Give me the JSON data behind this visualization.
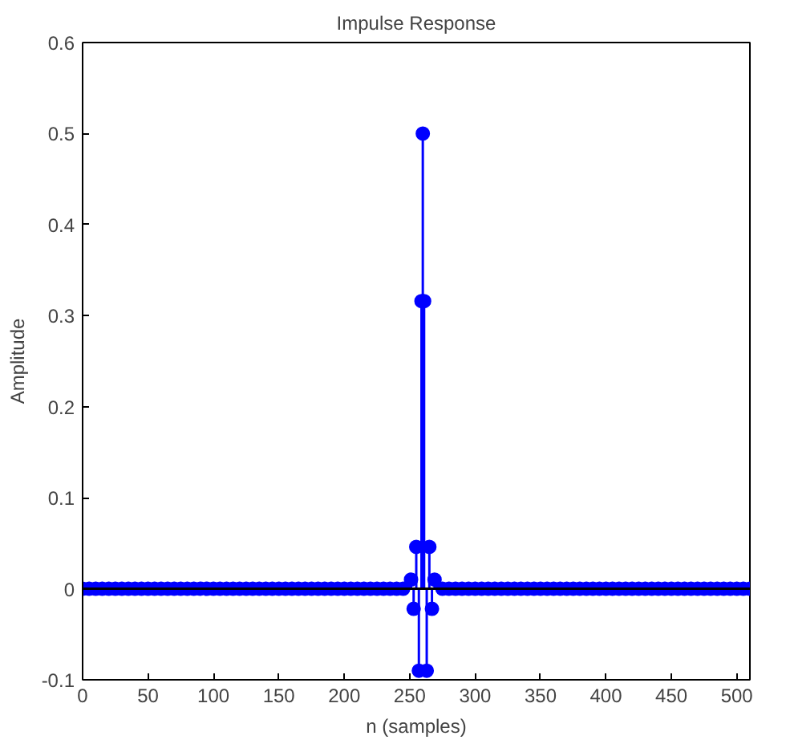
{
  "chart_data": {
    "type": "lollipop",
    "title": "Impulse Response",
    "xlabel": "n (samples)",
    "ylabel": "Amplitude",
    "xlim": [
      0,
      510
    ],
    "ylim": [
      -0.1,
      0.6
    ],
    "xticks": [
      0,
      50,
      100,
      150,
      200,
      250,
      300,
      350,
      400,
      450,
      500
    ],
    "yticks": [
      -0.1,
      0,
      0.1,
      0.2,
      0.3,
      0.4,
      0.5,
      0.6
    ],
    "grid": false,
    "marker": "circle",
    "ref_lines": [
      {
        "axis": "y",
        "value": 0,
        "color": "#000000"
      }
    ],
    "series": [
      {
        "color": "#0000ff",
        "x": [
          0,
          5,
          10,
          15,
          20,
          25,
          30,
          35,
          40,
          45,
          50,
          55,
          60,
          65,
          70,
          75,
          80,
          85,
          90,
          95,
          100,
          105,
          110,
          115,
          120,
          125,
          130,
          135,
          140,
          145,
          150,
          155,
          160,
          165,
          170,
          175,
          180,
          185,
          190,
          195,
          200,
          205,
          210,
          215,
          220,
          225,
          230,
          235,
          240,
          245,
          251,
          253,
          255,
          257,
          259,
          260,
          261,
          263,
          265,
          267,
          269,
          275,
          280,
          285,
          290,
          295,
          300,
          305,
          310,
          315,
          320,
          325,
          330,
          335,
          340,
          345,
          350,
          355,
          360,
          365,
          370,
          375,
          380,
          385,
          390,
          395,
          400,
          405,
          410,
          415,
          420,
          425,
          430,
          435,
          440,
          445,
          450,
          455,
          460,
          465,
          470,
          475,
          480,
          485,
          490,
          495,
          500,
          505,
          510
        ],
        "values": [
          0,
          0,
          0,
          0,
          0,
          0,
          0,
          0,
          0,
          0,
          0,
          0,
          0,
          0,
          0,
          0,
          0,
          0,
          0,
          0,
          0,
          0,
          0,
          0,
          0,
          0,
          0,
          0,
          0,
          0,
          0,
          0,
          0,
          0,
          0,
          0,
          0,
          0,
          0,
          0,
          0,
          0,
          0,
          0,
          0,
          0,
          0,
          0,
          0,
          0,
          0.01,
          -0.022,
          0.046,
          -0.09,
          0.316,
          0.5,
          0.316,
          -0.09,
          0.046,
          -0.022,
          0.01,
          0,
          0,
          0,
          0,
          0,
          0,
          0,
          0,
          0,
          0,
          0,
          0,
          0,
          0,
          0,
          0,
          0,
          0,
          0,
          0,
          0,
          0,
          0,
          0,
          0,
          0,
          0,
          0,
          0,
          0,
          0,
          0,
          0,
          0,
          0,
          0,
          0,
          0,
          0,
          0,
          0,
          0,
          0,
          0,
          0,
          0,
          0,
          0
        ]
      }
    ]
  }
}
